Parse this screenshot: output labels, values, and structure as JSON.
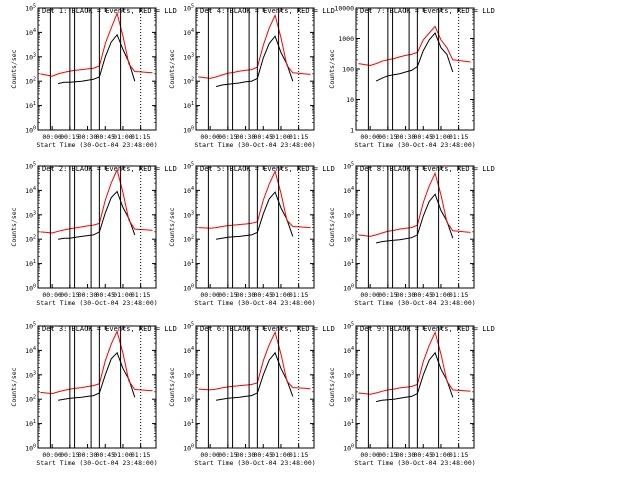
{
  "figure": {
    "ylabel": "Counts/sec",
    "xlabel": "Start Time (30-Oct-04 23:48:00)",
    "x_tick_labels": [
      "00:00",
      "00:15",
      "00:30",
      "00:45",
      "01:00",
      "01:15"
    ]
  },
  "chart_data": [
    {
      "type": "line",
      "title": "Det 1: BLACK = Events, RED = LLD",
      "xlabel": "Start Time (30-Oct-04 23:48:00)",
      "ylabel": "Counts/sec",
      "yscale": "log",
      "yticks": [
        "10^0",
        "10^1",
        "10^2",
        "10^3",
        "10^4",
        "10^5"
      ],
      "ylim": [
        1,
        100000
      ],
      "x": [
        "23:50",
        "23:55",
        "00:00",
        "00:05",
        "00:10",
        "00:15",
        "00:20",
        "00:25",
        "00:30",
        "00:35",
        "00:40",
        "00:45",
        "00:50",
        "00:55",
        "01:00",
        "01:05",
        "01:10",
        "01:15",
        "01:20",
        "01:25"
      ],
      "series": [
        {
          "name": "Events",
          "color": "#000000",
          "values": [
            null,
            null,
            null,
            80,
            90,
            90,
            95,
            100,
            110,
            120,
            150,
            1000,
            4000,
            8000,
            2000,
            600,
            100,
            null,
            null,
            null
          ]
        },
        {
          "name": "LLD",
          "color": "#ff0000",
          "values": [
            200,
            180,
            160,
            200,
            230,
            260,
            280,
            300,
            320,
            340,
            420,
            3500,
            15000,
            60000,
            7000,
            500,
            250,
            240,
            230,
            220
          ]
        }
      ]
    },
    {
      "type": "line",
      "title": "Det 2: BLACK = Events, RED = LLD",
      "xlabel": "Start Time (30-Oct-04 23:48:00)",
      "ylabel": "Counts/sec",
      "yscale": "log",
      "yticks": [
        "10^0",
        "10^1",
        "10^2",
        "10^3",
        "10^4",
        "10^5"
      ],
      "ylim": [
        1,
        100000
      ],
      "x": [
        "23:50",
        "23:55",
        "00:00",
        "00:05",
        "00:10",
        "00:15",
        "00:20",
        "00:25",
        "00:30",
        "00:35",
        "00:40",
        "00:45",
        "00:50",
        "00:55",
        "01:00",
        "01:05",
        "01:10",
        "01:15",
        "01:20",
        "01:25"
      ],
      "series": [
        {
          "name": "Events",
          "color": "#000000",
          "values": [
            null,
            null,
            null,
            100,
            110,
            110,
            120,
            130,
            140,
            150,
            200,
            1200,
            5000,
            9000,
            2000,
            700,
            150,
            null,
            null,
            null
          ]
        },
        {
          "name": "LLD",
          "color": "#ff0000",
          "values": [
            200,
            190,
            180,
            210,
            240,
            270,
            290,
            320,
            350,
            380,
            450,
            4000,
            20000,
            70000,
            8000,
            600,
            260,
            250,
            240,
            230
          ]
        }
      ]
    },
    {
      "type": "line",
      "title": "Det 3: BLACK = Events, RED = LLD",
      "xlabel": "Start Time (30-Oct-04 23:48:00)",
      "ylabel": "Counts/sec",
      "yscale": "log",
      "yticks": [
        "10^0",
        "10^1",
        "10^2",
        "10^3",
        "10^4",
        "10^5"
      ],
      "ylim": [
        1,
        100000
      ],
      "x": [
        "23:50",
        "23:55",
        "00:00",
        "00:05",
        "00:10",
        "00:15",
        "00:20",
        "00:25",
        "00:30",
        "00:35",
        "00:40",
        "00:45",
        "00:50",
        "00:55",
        "01:00",
        "01:05",
        "01:10",
        "01:15",
        "01:20",
        "01:25"
      ],
      "series": [
        {
          "name": "Events",
          "color": "#000000",
          "values": [
            null,
            null,
            null,
            90,
            100,
            110,
            115,
            120,
            130,
            140,
            180,
            1000,
            4500,
            8000,
            1800,
            650,
            120,
            null,
            null,
            null
          ]
        },
        {
          "name": "LLD",
          "color": "#ff0000",
          "values": [
            190,
            180,
            170,
            200,
            230,
            260,
            280,
            300,
            330,
            360,
            430,
            3800,
            18000,
            60000,
            7500,
            550,
            250,
            240,
            230,
            220
          ]
        }
      ]
    },
    {
      "type": "line",
      "title": "Det 4: BLACK = Events, RED = LLD",
      "xlabel": "Start Time (30-Oct-04 23:48:00)",
      "ylabel": "Counts/sec",
      "yscale": "log",
      "yticks": [
        "10^0",
        "10^1",
        "10^2",
        "10^3",
        "10^4",
        "10^5"
      ],
      "ylim": [
        1,
        100000
      ],
      "x": [
        "23:50",
        "23:55",
        "00:00",
        "00:05",
        "00:10",
        "00:15",
        "00:20",
        "00:25",
        "00:30",
        "00:35",
        "00:40",
        "00:45",
        "00:50",
        "00:55",
        "01:00",
        "01:05",
        "01:10",
        "01:15",
        "01:20",
        "01:25"
      ],
      "series": [
        {
          "name": "Events",
          "color": "#000000",
          "values": [
            null,
            null,
            null,
            60,
            70,
            75,
            80,
            85,
            95,
            100,
            130,
            900,
            3500,
            7000,
            1500,
            500,
            100,
            null,
            null,
            null
          ]
        },
        {
          "name": "LLD",
          "color": "#ff0000",
          "values": [
            150,
            140,
            130,
            150,
            180,
            210,
            230,
            260,
            280,
            300,
            380,
            3000,
            15000,
            50000,
            6000,
            450,
            220,
            210,
            200,
            190
          ]
        }
      ]
    },
    {
      "type": "line",
      "title": "Det 5: BLACK = Events, RED = LLD",
      "xlabel": "Start Time (30-Oct-04 23:48:00)",
      "ylabel": "Counts/sec",
      "yscale": "log",
      "yticks": [
        "10^0",
        "10^1",
        "10^2",
        "10^3",
        "10^4",
        "10^5"
      ],
      "ylim": [
        1,
        100000
      ],
      "x": [
        "23:50",
        "23:55",
        "00:00",
        "00:05",
        "00:10",
        "00:15",
        "00:20",
        "00:25",
        "00:30",
        "00:35",
        "00:40",
        "00:45",
        "00:50",
        "00:55",
        "01:00",
        "01:05",
        "01:10",
        "01:15",
        "01:20",
        "01:25"
      ],
      "series": [
        {
          "name": "Events",
          "color": "#000000",
          "values": [
            null,
            null,
            null,
            100,
            110,
            120,
            125,
            130,
            140,
            150,
            190,
            1100,
            4500,
            8500,
            1900,
            650,
            130,
            null,
            null,
            null
          ]
        },
        {
          "name": "LLD",
          "color": "#ff0000",
          "values": [
            300,
            290,
            280,
            300,
            330,
            360,
            380,
            400,
            420,
            450,
            520,
            4000,
            18000,
            60000,
            7500,
            600,
            330,
            320,
            310,
            300
          ]
        }
      ]
    },
    {
      "type": "line",
      "title": "Det 6: BLACK = Events, RED = LLD",
      "xlabel": "Start Time (30-Oct-04 23:48:00)",
      "ylabel": "Counts/sec",
      "yscale": "log",
      "yticks": [
        "10^0",
        "10^1",
        "10^2",
        "10^3",
        "10^4",
        "10^5"
      ],
      "ylim": [
        1,
        100000
      ],
      "x": [
        "23:50",
        "23:55",
        "00:00",
        "00:05",
        "00:10",
        "00:15",
        "00:20",
        "00:25",
        "00:30",
        "00:35",
        "00:40",
        "00:45",
        "00:50",
        "00:55",
        "01:00",
        "01:05",
        "01:10",
        "01:15",
        "01:20",
        "01:25"
      ],
      "series": [
        {
          "name": "Events",
          "color": "#000000",
          "values": [
            null,
            null,
            null,
            90,
            100,
            110,
            115,
            120,
            130,
            140,
            180,
            1000,
            4000,
            8000,
            1800,
            600,
            130,
            null,
            null,
            null
          ]
        },
        {
          "name": "LLD",
          "color": "#ff0000",
          "values": [
            260,
            250,
            240,
            260,
            290,
            320,
            340,
            360,
            380,
            400,
            470,
            3800,
            17000,
            55000,
            7000,
            550,
            300,
            290,
            280,
            270
          ]
        }
      ]
    },
    {
      "type": "line",
      "title": "Det 7: BLACK = Events, RED = LLD",
      "xlabel": "Start Time (30-Oct-04 23:48:00)",
      "ylabel": "Counts/sec",
      "yscale": "log",
      "yticks": [
        "1",
        "10",
        "100",
        "1000",
        "10000"
      ],
      "ylim": [
        1,
        10000
      ],
      "x": [
        "23:50",
        "23:55",
        "00:00",
        "00:05",
        "00:10",
        "00:15",
        "00:20",
        "00:25",
        "00:30",
        "00:35",
        "00:40",
        "00:45",
        "00:50",
        "00:55",
        "01:00",
        "01:05",
        "01:10",
        "01:15",
        "01:20",
        "01:25"
      ],
      "series": [
        {
          "name": "Events",
          "color": "#000000",
          "values": [
            null,
            null,
            null,
            40,
            50,
            60,
            65,
            70,
            80,
            90,
            120,
            400,
            900,
            1500,
            500,
            300,
            80,
            null,
            null,
            null
          ]
        },
        {
          "name": "LLD",
          "color": "#ff0000",
          "values": [
            150,
            140,
            130,
            150,
            180,
            200,
            220,
            250,
            280,
            300,
            350,
            900,
            1500,
            2500,
            900,
            500,
            200,
            190,
            180,
            170
          ]
        }
      ]
    },
    {
      "type": "line",
      "title": "Det 8: BLACK = Events, RED = LLD",
      "xlabel": "Start Time (30-Oct-04 23:48:00)",
      "ylabel": "Counts/sec",
      "yscale": "log",
      "yticks": [
        "10^0",
        "10^1",
        "10^2",
        "10^3",
        "10^4",
        "10^5"
      ],
      "ylim": [
        1,
        100000
      ],
      "x": [
        "23:50",
        "23:55",
        "00:00",
        "00:05",
        "00:10",
        "00:15",
        "00:20",
        "00:25",
        "00:30",
        "00:35",
        "00:40",
        "00:45",
        "00:50",
        "00:55",
        "01:00",
        "01:05",
        "01:10",
        "01:15",
        "01:20",
        "01:25"
      ],
      "series": [
        {
          "name": "Events",
          "color": "#000000",
          "values": [
            null,
            null,
            null,
            70,
            80,
            85,
            90,
            95,
            105,
            115,
            150,
            900,
            3500,
            7000,
            1500,
            550,
            110,
            null,
            null,
            null
          ]
        },
        {
          "name": "LLD",
          "color": "#ff0000",
          "values": [
            150,
            140,
            130,
            150,
            180,
            210,
            230,
            260,
            280,
            300,
            380,
            3200,
            15000,
            50000,
            6500,
            500,
            220,
            210,
            200,
            190
          ]
        }
      ]
    },
    {
      "type": "line",
      "title": "Det 9: BLACK = Events, RED = LLD",
      "xlabel": "Start Time (30-Oct-04 23:48:00)",
      "ylabel": "Counts/sec",
      "yscale": "log",
      "yticks": [
        "10^0",
        "10^1",
        "10^2",
        "10^3",
        "10^4",
        "10^5"
      ],
      "ylim": [
        1,
        100000
      ],
      "x": [
        "23:50",
        "23:55",
        "00:00",
        "00:05",
        "00:10",
        "00:15",
        "00:20",
        "00:25",
        "00:30",
        "00:35",
        "00:40",
        "00:45",
        "00:50",
        "00:55",
        "01:00",
        "01:05",
        "01:10",
        "01:15",
        "01:20",
        "01:25"
      ],
      "series": [
        {
          "name": "Events",
          "color": "#000000",
          "values": [
            null,
            null,
            null,
            80,
            90,
            95,
            100,
            110,
            120,
            130,
            170,
            1000,
            4000,
            8000,
            1700,
            600,
            120,
            null,
            null,
            null
          ]
        },
        {
          "name": "LLD",
          "color": "#ff0000",
          "values": [
            180,
            170,
            160,
            180,
            210,
            240,
            260,
            290,
            310,
            330,
            400,
            3500,
            16000,
            55000,
            7000,
            550,
            240,
            230,
            220,
            210
          ]
        }
      ]
    }
  ]
}
